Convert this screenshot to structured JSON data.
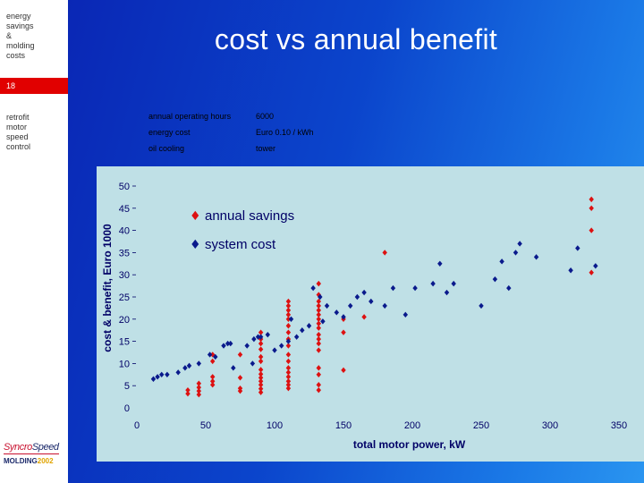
{
  "sidebar": {
    "topic_lines": [
      "energy",
      "savings",
      "&",
      "molding",
      "costs"
    ],
    "slide_number": "18",
    "section_lines": [
      "retrofit",
      "motor",
      "speed",
      "control"
    ],
    "logo_text_a": "Syncro",
    "logo_text_b": "Speed",
    "logo_sub_a": "MOLDING",
    "logo_sub_b": "2002"
  },
  "slide": {
    "title": "cost vs annual benefit",
    "info": [
      {
        "label": "annual operating hours",
        "value": "6000"
      },
      {
        "label": "energy cost",
        "value": "Euro 0.10 / kWh"
      },
      {
        "label": "oil cooling",
        "value": "tower"
      }
    ]
  },
  "colors": {
    "annual_savings": "#dd1111",
    "system_cost": "#0a1a8c",
    "chart_bg": "#bfe0e6",
    "axis_text": "#000066"
  },
  "chart_data": {
    "type": "scatter",
    "title": "",
    "xlabel": "total motor power, kW",
    "ylabel": "cost & benefit, Euro 1000",
    "xlim": [
      0,
      350
    ],
    "ylim": [
      0,
      50
    ],
    "xticks": [
      0,
      50,
      100,
      150,
      200,
      250,
      300,
      350
    ],
    "yticks": [
      0,
      5,
      10,
      15,
      20,
      25,
      30,
      35,
      40,
      45,
      50
    ],
    "grid": false,
    "legend_position": "top-left",
    "series": [
      {
        "name": "annual savings",
        "marker": "♦",
        "color": "#dd1111",
        "points": [
          [
            37,
            3.2
          ],
          [
            37,
            4
          ],
          [
            45,
            3
          ],
          [
            45,
            3.8
          ],
          [
            45,
            4.6
          ],
          [
            45,
            5.5
          ],
          [
            55,
            10.5
          ],
          [
            55,
            12
          ],
          [
            55,
            7
          ],
          [
            55,
            5.2
          ],
          [
            55,
            6
          ],
          [
            75,
            3.8
          ],
          [
            75,
            4.4
          ],
          [
            75,
            6.8
          ],
          [
            75,
            12
          ],
          [
            90,
            3.5
          ],
          [
            90,
            4.3
          ],
          [
            90,
            5.2
          ],
          [
            90,
            6
          ],
          [
            90,
            6.8
          ],
          [
            90,
            7.6
          ],
          [
            90,
            8.6
          ],
          [
            90,
            10.5
          ],
          [
            90,
            11.5
          ],
          [
            90,
            13.2
          ],
          [
            90,
            14.5
          ],
          [
            90,
            15.5
          ],
          [
            90,
            17
          ],
          [
            110,
            4.4
          ],
          [
            110,
            5.2
          ],
          [
            110,
            6
          ],
          [
            110,
            7
          ],
          [
            110,
            8
          ],
          [
            110,
            9
          ],
          [
            110,
            10.5
          ],
          [
            110,
            12
          ],
          [
            110,
            14
          ],
          [
            110,
            15.5
          ],
          [
            110,
            17
          ],
          [
            110,
            18.5
          ],
          [
            110,
            20
          ],
          [
            110,
            21
          ],
          [
            110,
            22
          ],
          [
            110,
            23
          ],
          [
            110,
            24
          ],
          [
            132,
            4
          ],
          [
            132,
            5.2
          ],
          [
            132,
            7.5
          ],
          [
            132,
            9
          ],
          [
            132,
            13
          ],
          [
            132,
            14.5
          ],
          [
            132,
            15.5
          ],
          [
            132,
            16.5
          ],
          [
            132,
            18
          ],
          [
            132,
            19
          ],
          [
            132,
            20
          ],
          [
            132,
            21
          ],
          [
            132,
            22
          ],
          [
            132,
            23
          ],
          [
            132,
            24
          ],
          [
            132,
            25.5
          ],
          [
            132,
            28
          ],
          [
            150,
            8.5
          ],
          [
            150,
            17
          ],
          [
            150,
            20
          ],
          [
            165,
            20.5
          ],
          [
            180,
            35
          ],
          [
            330,
            47
          ],
          [
            330,
            45
          ],
          [
            330,
            40
          ],
          [
            330,
            30.5
          ]
        ]
      },
      {
        "name": "system cost",
        "marker": "♦",
        "color": "#0a1a8c",
        "points": [
          [
            12,
            6.5
          ],
          [
            15,
            7
          ],
          [
            18,
            7.5
          ],
          [
            22,
            7.5
          ],
          [
            30,
            8
          ],
          [
            35,
            9
          ],
          [
            38,
            9.5
          ],
          [
            45,
            10
          ],
          [
            53,
            12
          ],
          [
            57,
            11.5
          ],
          [
            63,
            14
          ],
          [
            66,
            14.5
          ],
          [
            68,
            14.5
          ],
          [
            70,
            9
          ],
          [
            80,
            14
          ],
          [
            84,
            10
          ],
          [
            85,
            15.5
          ],
          [
            88,
            16
          ],
          [
            90,
            16
          ],
          [
            95,
            16.5
          ],
          [
            100,
            13
          ],
          [
            105,
            14
          ],
          [
            110,
            15
          ],
          [
            112,
            20
          ],
          [
            116,
            16
          ],
          [
            120,
            17.5
          ],
          [
            125,
            18.5
          ],
          [
            128,
            27
          ],
          [
            133,
            25
          ],
          [
            135,
            19.5
          ],
          [
            138,
            23
          ],
          [
            145,
            21.5
          ],
          [
            150,
            20.5
          ],
          [
            155,
            23
          ],
          [
            160,
            25
          ],
          [
            165,
            26
          ],
          [
            170,
            24
          ],
          [
            180,
            23
          ],
          [
            186,
            27
          ],
          [
            195,
            21
          ],
          [
            202,
            27
          ],
          [
            215,
            28
          ],
          [
            220,
            32.5
          ],
          [
            225,
            26
          ],
          [
            230,
            28
          ],
          [
            250,
            23
          ],
          [
            260,
            29
          ],
          [
            265,
            33
          ],
          [
            270,
            27
          ],
          [
            275,
            35
          ],
          [
            278,
            37
          ],
          [
            290,
            34
          ],
          [
            315,
            31
          ],
          [
            320,
            36
          ],
          [
            333,
            32
          ]
        ]
      }
    ]
  }
}
